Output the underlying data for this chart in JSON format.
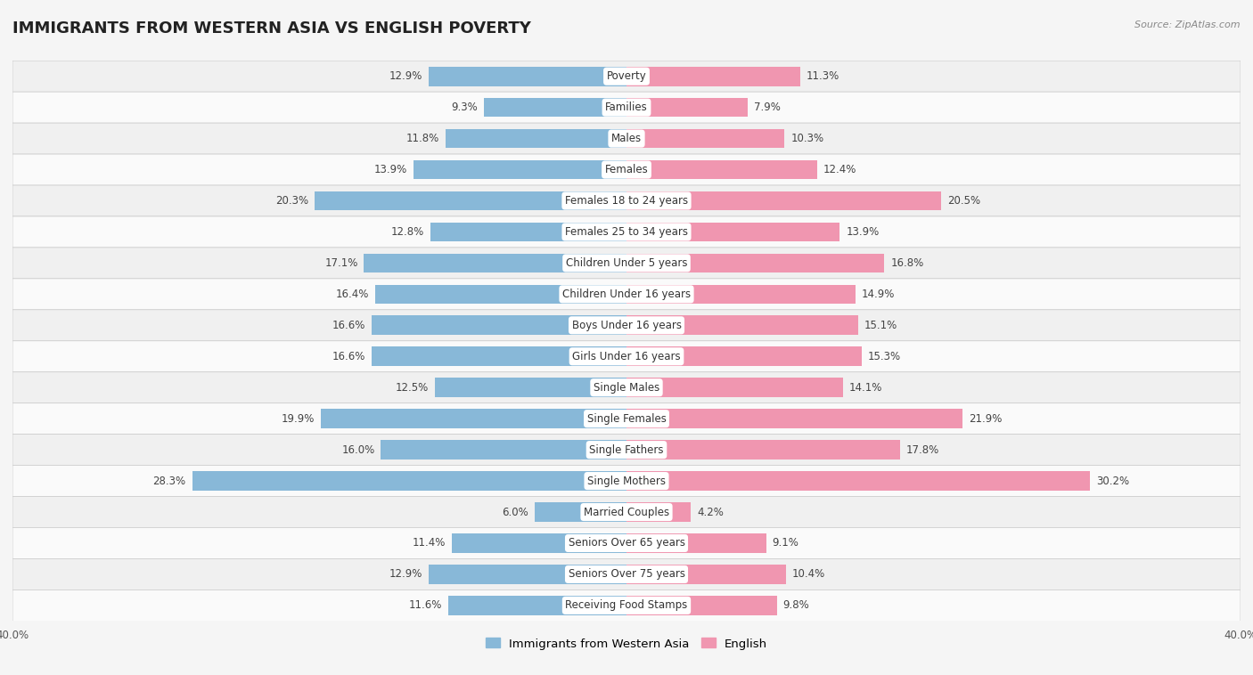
{
  "title": "IMMIGRANTS FROM WESTERN ASIA VS ENGLISH POVERTY",
  "source": "Source: ZipAtlas.com",
  "categories": [
    "Poverty",
    "Families",
    "Males",
    "Females",
    "Females 18 to 24 years",
    "Females 25 to 34 years",
    "Children Under 5 years",
    "Children Under 16 years",
    "Boys Under 16 years",
    "Girls Under 16 years",
    "Single Males",
    "Single Females",
    "Single Fathers",
    "Single Mothers",
    "Married Couples",
    "Seniors Over 65 years",
    "Seniors Over 75 years",
    "Receiving Food Stamps"
  ],
  "left_values": [
    12.9,
    9.3,
    11.8,
    13.9,
    20.3,
    12.8,
    17.1,
    16.4,
    16.6,
    16.6,
    12.5,
    19.9,
    16.0,
    28.3,
    6.0,
    11.4,
    12.9,
    11.6
  ],
  "right_values": [
    11.3,
    7.9,
    10.3,
    12.4,
    20.5,
    13.9,
    16.8,
    14.9,
    15.1,
    15.3,
    14.1,
    21.9,
    17.8,
    30.2,
    4.2,
    9.1,
    10.4,
    9.8
  ],
  "left_color": "#88b8d8",
  "right_color": "#f096b0",
  "row_color_even": "#f0f0f0",
  "row_color_odd": "#fafafa",
  "background_color": "#f5f5f5",
  "axis_limit": 40.0,
  "bar_height": 0.62,
  "legend_labels": [
    "Immigrants from Western Asia",
    "English"
  ],
  "title_fontsize": 13,
  "label_fontsize": 8.5,
  "value_fontsize": 8.5,
  "legend_fontsize": 9.5,
  "cat_fontsize": 8.5
}
